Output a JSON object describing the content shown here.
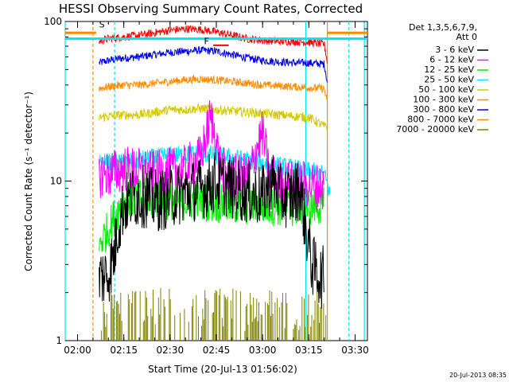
{
  "chart_data": {
    "type": "line",
    "title": "HESSI Observing Summary Count Rates, Corrected",
    "xlabel": "Start Time (20-Jul-13 01:56:02)",
    "ylabel": "Corrected Count Rate (s⁻¹ detector⁻¹)",
    "x_scale": "time",
    "y_scale": "log",
    "xlim": [
      "01:56",
      "03:34"
    ],
    "ylim": [
      1,
      100
    ],
    "x_ticks": [
      "02:00",
      "02:15",
      "02:30",
      "02:45",
      "03:00",
      "03:15",
      "03:30"
    ],
    "y_ticks": [
      "1",
      "10",
      "100"
    ],
    "legend_header": [
      "Det 1,3,5,6,7,9,",
      "Att 0"
    ],
    "legend_position": "right",
    "annotations": [
      "S",
      "F"
    ],
    "timestamp": "20-Jul-2013 08:35",
    "vertical_markers": [
      {
        "time": "01:56",
        "color": "#00e5ee",
        "style": "solid"
      },
      {
        "time": "02:05",
        "color": "#ff8c00",
        "style": "dashed"
      },
      {
        "time": "02:12",
        "color": "#00e5ee",
        "style": "dashed"
      },
      {
        "time": "03:14",
        "color": "#00e5ee",
        "style": "solid"
      },
      {
        "time": "03:21",
        "color": "#ff8c00",
        "style": "solid"
      },
      {
        "time": "03:28",
        "color": "#00e5ee",
        "style": "dashed"
      },
      {
        "time": "03:33",
        "color": "#00e5ee",
        "style": "solid"
      }
    ],
    "series": [
      {
        "name": "3 - 6 keV",
        "color": "#000000",
        "noise": 0.4,
        "x": [
          "02:07",
          "02:10",
          "02:12",
          "02:13",
          "02:15",
          "02:18",
          "02:22",
          "02:26",
          "02:30",
          "02:35",
          "02:40",
          "02:45",
          "02:50",
          "02:55",
          "03:00",
          "03:03",
          "03:06",
          "03:09",
          "03:12",
          "03:14",
          "03:16",
          "03:17",
          "03:19",
          "03:20"
        ],
        "y": [
          2.5,
          2.6,
          3.5,
          5,
          7,
          8,
          8,
          7.5,
          8,
          8.5,
          9,
          10,
          9,
          8.5,
          8,
          10,
          8,
          8,
          9,
          5,
          3,
          2.8,
          2.5,
          2.5
        ]
      },
      {
        "name": "6 - 12 keV",
        "color": "#ff00ff",
        "noise": 0.3,
        "x": [
          "02:07",
          "02:10",
          "02:15",
          "02:20",
          "02:25",
          "02:30",
          "02:35",
          "02:40",
          "02:42",
          "02:43",
          "02:44",
          "02:46",
          "02:48",
          "02:52",
          "02:56",
          "02:58",
          "03:00",
          "03:02",
          "03:05",
          "03:10",
          "03:15",
          "03:20"
        ],
        "y": [
          11,
          11,
          12,
          11.5,
          11,
          11.5,
          12,
          14,
          20,
          25,
          22,
          13,
          11,
          10.5,
          11,
          16,
          20,
          11,
          10,
          9.5,
          9.5,
          9
        ]
      },
      {
        "name": "12 - 25 keV",
        "color": "#00ee00",
        "noise": 0.25,
        "x": [
          "02:07",
          "02:10",
          "02:13",
          "02:15",
          "02:20",
          "02:30",
          "02:40",
          "02:50",
          "03:00",
          "03:10",
          "03:15",
          "03:20"
        ],
        "y": [
          4,
          5,
          6.5,
          7.5,
          8,
          7.5,
          7.5,
          7,
          7,
          6.8,
          7,
          7
        ]
      },
      {
        "name": "25 - 50 keV",
        "color": "#00e5ee",
        "noise": 0.12,
        "x": [
          "02:07",
          "02:10",
          "02:15",
          "02:20",
          "02:25",
          "02:30",
          "02:35",
          "02:40",
          "02:45",
          "02:50",
          "02:55",
          "03:00",
          "03:05",
          "03:10",
          "03:15",
          "03:20",
          "03:22"
        ],
        "y": [
          13,
          13,
          13,
          13.5,
          14,
          14.5,
          14.5,
          15,
          14.5,
          14,
          13.5,
          13,
          12.5,
          12,
          11.5,
          11,
          8
        ]
      },
      {
        "name": "50 - 100 keV",
        "color": "#d4c800",
        "noise": 0.06,
        "x": [
          "02:07",
          "02:10",
          "02:15",
          "02:20",
          "02:25",
          "02:30",
          "02:35",
          "02:40",
          "02:45",
          "02:50",
          "02:55",
          "03:00",
          "03:05",
          "03:10",
          "03:15",
          "03:20",
          "03:21"
        ],
        "y": [
          25,
          25.5,
          26,
          26,
          27,
          28,
          28,
          28.5,
          28,
          27.5,
          27,
          26.5,
          26,
          25.5,
          25,
          22,
          22
        ]
      },
      {
        "name": "100 - 300 keV",
        "color": "#ff8c00",
        "noise": 0.05,
        "x": [
          "02:07",
          "02:10",
          "02:15",
          "02:20",
          "02:25",
          "02:30",
          "02:35",
          "02:40",
          "02:45",
          "02:50",
          "02:55",
          "03:00",
          "03:05",
          "03:10",
          "03:15",
          "03:20",
          "03:21"
        ],
        "y": [
          38,
          39,
          40,
          40,
          41,
          42,
          43,
          43.5,
          43,
          42,
          41,
          40,
          39.5,
          39,
          38.5,
          38,
          30
        ]
      },
      {
        "name": "300 - 800 keV",
        "color": "#0000ee",
        "noise": 0.05,
        "x": [
          "02:07",
          "02:10",
          "02:15",
          "02:20",
          "02:25",
          "02:30",
          "02:35",
          "02:40",
          "02:45",
          "02:50",
          "02:55",
          "03:00",
          "03:05",
          "03:10",
          "03:15",
          "03:20",
          "03:21"
        ],
        "y": [
          55,
          57,
          59,
          60,
          62,
          64,
          65,
          66,
          65,
          62,
          59,
          57,
          56,
          55,
          55,
          54,
          41
        ]
      },
      {
        "name": "800 - 7000 keV",
        "color": "#ff8c00",
        "noise": 0.0,
        "x": [
          "01:56",
          "02:06"
        ],
        "y": [
          85,
          85
        ]
      },
      {
        "name": "7000 - 20000 keV",
        "color": "#808000",
        "noise": 0.0,
        "bars": true,
        "x": [
          "02:07",
          "03:21"
        ],
        "y": [
          2,
          2
        ]
      },
      {
        "name": "",
        "color": "#ff0000",
        "noise": 0.05,
        "x": [
          "02:07",
          "02:10",
          "02:15",
          "02:20",
          "02:25",
          "02:30",
          "02:35",
          "02:40",
          "02:45",
          "02:50",
          "02:55",
          "03:00",
          "03:05",
          "03:10",
          "03:15",
          "03:20",
          "03:21"
        ],
        "y": [
          75,
          78,
          80,
          82,
          85,
          88,
          90,
          89,
          86,
          82,
          78,
          76,
          75,
          75,
          74,
          72,
          55
        ]
      }
    ],
    "extra_lines": [
      {
        "color": "#00e5ee",
        "x": [
          "01:56",
          "03:34"
        ],
        "y": [
          78,
          78
        ]
      },
      {
        "color": "#ff8c00",
        "x": [
          "03:21",
          "03:34"
        ],
        "y": [
          85,
          85
        ]
      }
    ]
  }
}
